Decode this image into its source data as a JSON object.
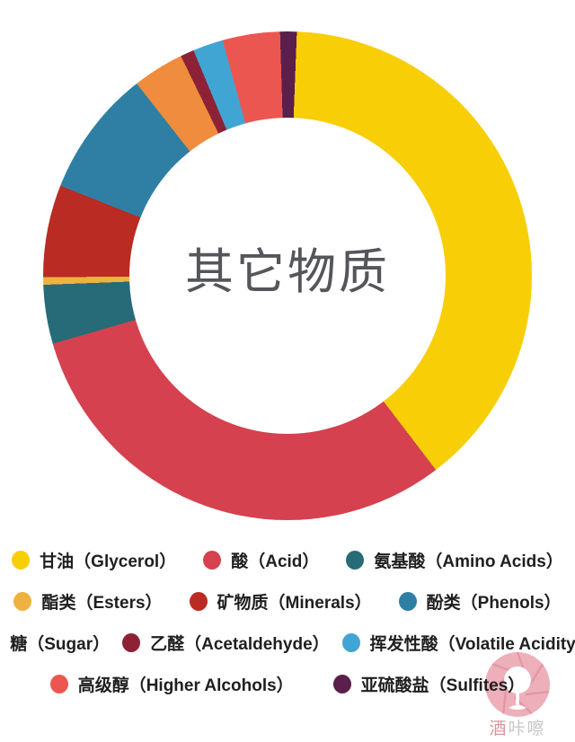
{
  "page": {
    "background": "#ffffff"
  },
  "chart_data": {
    "type": "pie",
    "subtype": "donut",
    "center_label": "其它物质",
    "start_angle_deg": 2.2,
    "legend_position": "bottom-wrapped",
    "segments": [
      {
        "label": "甘油（Glycerol）",
        "zh": "甘油",
        "en": "Glycerol",
        "value_pct": 39.0,
        "color": "#F8CE06"
      },
      {
        "label": "酸（Acid）",
        "zh": "酸",
        "en": "Acid",
        "value_pct": 30.9,
        "color": "#D5414E"
      },
      {
        "label": "氨基酸（Amino Acids）",
        "zh": "氨基酸",
        "en": "Amino Acids",
        "value_pct": 3.9,
        "color": "#266B77"
      },
      {
        "label": "酯类（Esters）",
        "zh": "酯类",
        "en": "Esters",
        "value_pct": 0.5,
        "color": "#EFB13F"
      },
      {
        "label": "矿物质（Minerals）",
        "zh": "矿物质",
        "en": "Minerals",
        "value_pct": 6.1,
        "color": "#B92B23"
      },
      {
        "label": "酚类（Phenols）",
        "zh": "酚类",
        "en": "Phenols",
        "value_pct": 8.4,
        "color": "#2F7FA4"
      },
      {
        "label": "糖（Sugar）",
        "zh": "糖",
        "en": "Sugar",
        "value_pct": 3.4,
        "color": "#EF8C3D"
      },
      {
        "label": "乙醛（Acetaldehyde）",
        "zh": "乙醛",
        "en": "Acetaldehyde",
        "value_pct": 0.9,
        "color": "#8D2236"
      },
      {
        "label": "挥发性酸（Volatile Acidity）",
        "zh": "挥发性酸",
        "en": "Volatile Acidity",
        "value_pct": 2.0,
        "color": "#41A5D3"
      },
      {
        "label": "高级醇（Higher Alcohols）",
        "zh": "高级醇",
        "en": "Higher Alcohols",
        "value_pct": 3.8,
        "color": "#EB5750"
      },
      {
        "label": "亚硫酸盐（Sulfites）",
        "zh": "亚硫酸盐",
        "en": "Sulfites",
        "value_pct": 1.1,
        "color": "#5B1F4C"
      }
    ],
    "legend_rows": [
      [
        0,
        1,
        2
      ],
      [
        3,
        4,
        5
      ],
      [
        6,
        7,
        8
      ],
      [
        9,
        10
      ]
    ]
  },
  "logo": {
    "text_first": "酒",
    "text_rest": "咔嚓",
    "circle_color": "#ECA9B4",
    "petal_color": "#E293A3"
  }
}
